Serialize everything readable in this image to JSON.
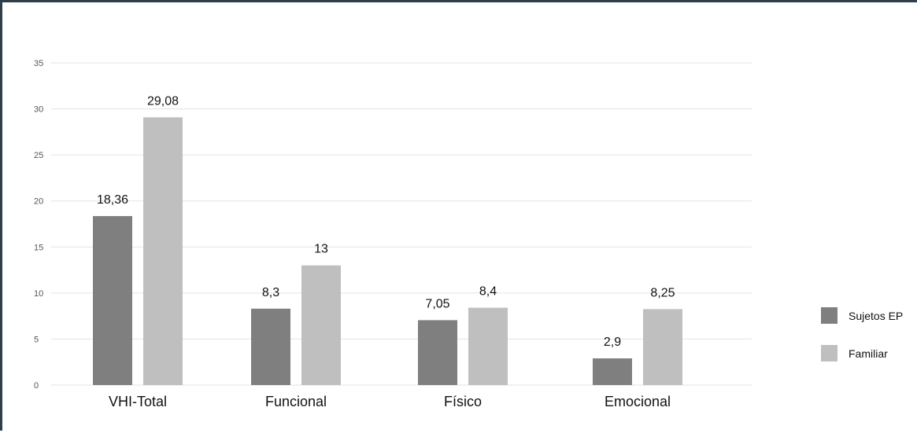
{
  "chart_data": {
    "type": "bar",
    "title": "",
    "xlabel": "",
    "ylabel": "",
    "categories": [
      "VHI-Total",
      "Funcional",
      "Físico",
      "Emocional"
    ],
    "series": [
      {
        "name": "Sujetos EP",
        "values": [
          18.36,
          8.3,
          7.05,
          2.9
        ],
        "labels": [
          "18,36",
          "8,3",
          "7,05",
          "2,9"
        ],
        "color": "#7f7f7f"
      },
      {
        "name": "Familiar",
        "values": [
          29.08,
          13,
          8.4,
          8.25
        ],
        "labels": [
          "29,08",
          "13",
          "8,4",
          "8,25"
        ],
        "color": "#bfbfbf"
      }
    ],
    "ylim": [
      0,
      35
    ],
    "yticks": [
      0,
      5,
      10,
      15,
      20,
      25,
      30,
      35
    ],
    "grid": true,
    "legend_position": "right"
  }
}
